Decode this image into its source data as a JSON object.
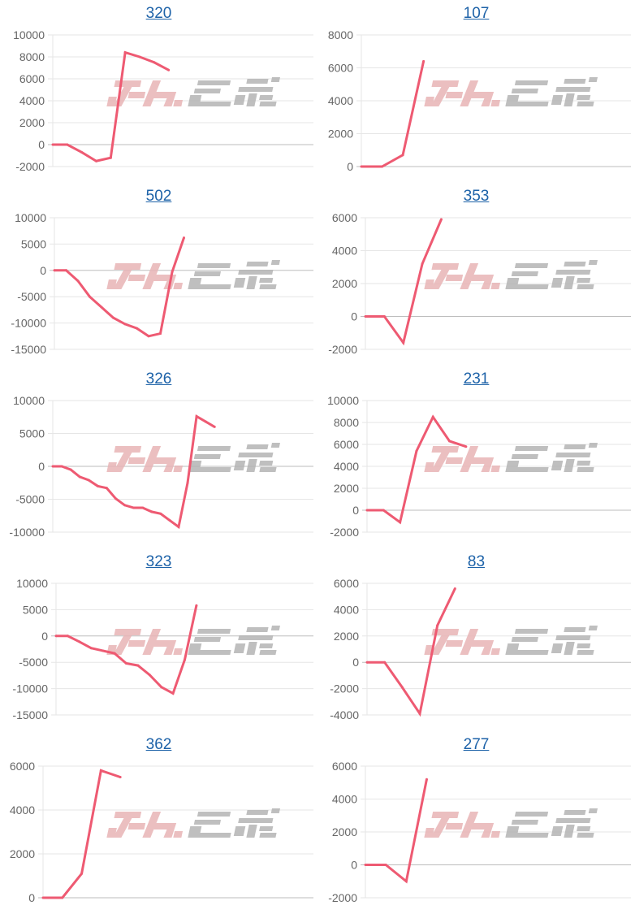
{
  "colors": {
    "line": "#ee5a72",
    "grid": "#e6e6e6",
    "zero_line": "#bdbdbd",
    "title_link": "#1d62a8",
    "watermark_pink": "#e8b4b6",
    "watermark_gray": "#b4b4b4"
  },
  "watermark": "みんレポ",
  "chart_data": [
    {
      "type": "line",
      "title": "320",
      "ylim": [
        -2000,
        10000
      ],
      "ystep": 2000,
      "xlim": [
        0,
        18
      ],
      "grid": true,
      "values": [
        0,
        0,
        -700,
        -1500,
        -1200,
        8400,
        8000,
        7500,
        6800
      ]
    },
    {
      "type": "line",
      "title": "107",
      "ylim": [
        0,
        8000
      ],
      "ystep": 2000,
      "xlim": [
        0,
        13
      ],
      "grid": true,
      "values": [
        0,
        0,
        700,
        6400
      ]
    },
    {
      "type": "line",
      "title": "502",
      "ylim": [
        -15000,
        10000
      ],
      "ystep": 5000,
      "xlim": [
        0,
        22
      ],
      "grid": true,
      "values": [
        0,
        0,
        -2000,
        -5000,
        -7000,
        -9000,
        -10200,
        -11000,
        -12500,
        -12000,
        -300,
        6200
      ]
    },
    {
      "type": "line",
      "title": "353",
      "ylim": [
        -2000,
        6000
      ],
      "ystep": 2000,
      "xlim": [
        0,
        14
      ],
      "grid": true,
      "values": [
        0,
        0,
        -1600,
        3200,
        5900
      ]
    },
    {
      "type": "line",
      "title": "326",
      "ylim": [
        -10000,
        10000
      ],
      "ystep": 5000,
      "xlim": [
        0,
        29
      ],
      "grid": true,
      "values": [
        0,
        0,
        -500,
        -1600,
        -2100,
        -3000,
        -3300,
        -4900,
        -5900,
        -6300,
        -6300,
        -6900,
        -7200,
        -8200,
        -9200,
        -2500,
        7600,
        6800,
        6000
      ]
    },
    {
      "type": "line",
      "title": "231",
      "ylim": [
        -2000,
        10000
      ],
      "ystep": 2000,
      "xlim": [
        0,
        16
      ],
      "grid": true,
      "values": [
        0,
        0,
        -1100,
        5400,
        8500,
        6300,
        5800
      ]
    },
    {
      "type": "line",
      "title": "323",
      "ylim": [
        -15000,
        10000
      ],
      "ystep": 5000,
      "xlim": [
        0,
        22
      ],
      "grid": true,
      "values": [
        0,
        0,
        -1100,
        -2300,
        -2800,
        -3300,
        -5200,
        -5600,
        -7400,
        -9700,
        -10900,
        -4500,
        5800
      ]
    },
    {
      "type": "line",
      "title": "83",
      "ylim": [
        -4000,
        6000
      ],
      "ystep": 2000,
      "xlim": [
        0,
        15
      ],
      "grid": true,
      "values": [
        0,
        0,
        -1900,
        -3900,
        2800,
        5600
      ]
    },
    {
      "type": "line",
      "title": "362",
      "ylim": [
        0,
        6000
      ],
      "ystep": 2000,
      "xlim": [
        0,
        14
      ],
      "grid": true,
      "values": [
        0,
        0,
        1100,
        5800,
        5500
      ]
    },
    {
      "type": "line",
      "title": "277",
      "ylim": [
        -2000,
        6000
      ],
      "ystep": 2000,
      "xlim": [
        0,
        13
      ],
      "grid": true,
      "values": [
        0,
        0,
        -1000,
        5200
      ]
    }
  ]
}
